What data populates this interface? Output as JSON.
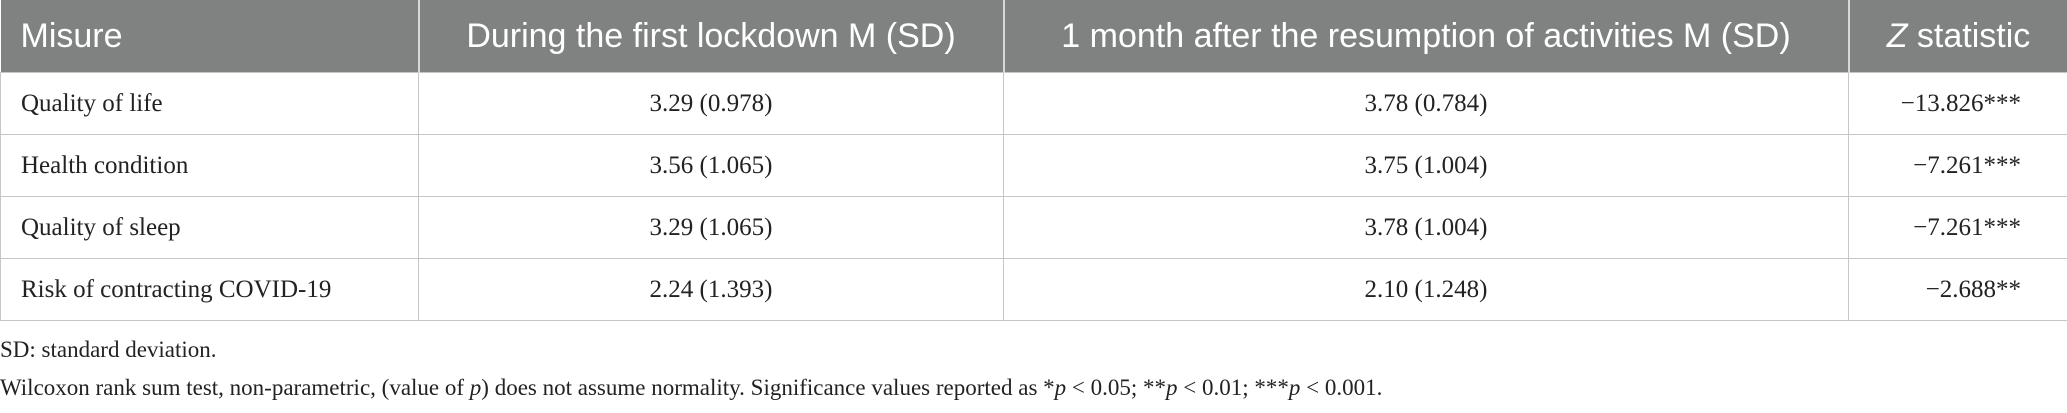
{
  "table": {
    "header": [
      "Misure",
      "During the first lockdown M (SD)",
      "1 month after the resumption of activities M (SD)",
      "Z statistic"
    ],
    "rows": [
      [
        "Quality of life",
        "3.29 (0.978)",
        "3.78 (0.784)",
        "−13.826***"
      ],
      [
        "Health condition",
        "3.56 (1.065)",
        "3.75 (1.004)",
        "−7.261***"
      ],
      [
        "Quality of sleep",
        "3.29 (1.065)",
        "3.78 (1.004)",
        "−7.261***"
      ],
      [
        "Risk of contracting COVID-19",
        "2.24 (1.393)",
        "2.10 (1.248)",
        "−2.688**"
      ]
    ]
  },
  "notes": {
    "abbreviation": "SD: standard deviation.",
    "test": [
      "Wilcoxon rank sum test, non-parametric, (value of ",
      "p",
      ") does not assume normality. Significance values reported as *",
      "p",
      " < 0.05; **",
      "p",
      " < 0.01; ***",
      "p",
      " < 0.001."
    ]
  }
}
